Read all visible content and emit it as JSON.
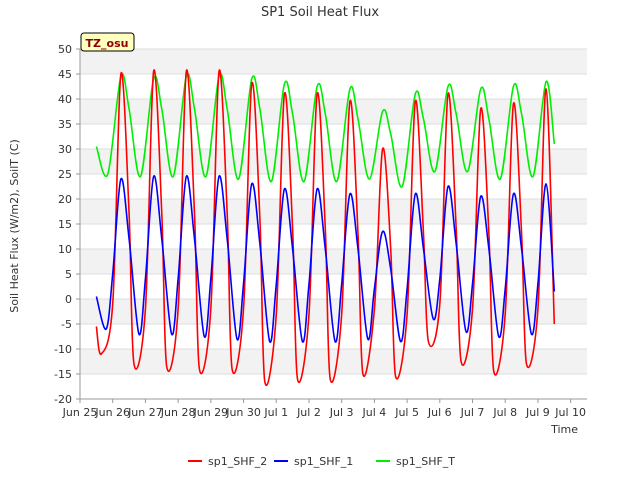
{
  "chart_data": {
    "type": "line",
    "title": "SP1 Soil Heat Flux",
    "xlabel": "Time",
    "ylabel": "Soil Heat Flux (W/m2), SoilT (C)",
    "annotation": "TZ_osu",
    "ylim": [
      -20,
      50
    ],
    "yticks": [
      -20,
      -15,
      -10,
      -5,
      0,
      5,
      10,
      15,
      20,
      25,
      30,
      35,
      40,
      45,
      50
    ],
    "xlim": [
      0,
      15.5
    ],
    "xticks": [
      {
        "x": 0,
        "label": "Jun 25"
      },
      {
        "x": 1,
        "label": "Jun 26"
      },
      {
        "x": 2,
        "label": "Jun 27"
      },
      {
        "x": 3,
        "label": "Jun 28"
      },
      {
        "x": 4,
        "label": "Jun 29"
      },
      {
        "x": 5,
        "label": "Jun 30"
      },
      {
        "x": 6,
        "label": "Jul 1"
      },
      {
        "x": 7,
        "label": "Jul 2"
      },
      {
        "x": 8,
        "label": "Jul 3"
      },
      {
        "x": 9,
        "label": "Jul 4"
      },
      {
        "x": 10,
        "label": "Jul 5"
      },
      {
        "x": 11,
        "label": "Jul 6"
      },
      {
        "x": 12,
        "label": "Jul 7"
      },
      {
        "x": 13,
        "label": "Jul 8"
      },
      {
        "x": 14,
        "label": "Jul 9"
      },
      {
        "x": 15,
        "label": "Jul 10"
      }
    ],
    "legend_position": "bottom",
    "grid": true,
    "series": [
      {
        "name": "sp1_SHF_2",
        "color": "#ff0000",
        "points": [
          [
            0.5,
            -5.5
          ],
          [
            0.65,
            -11
          ],
          [
            1.0,
            -1
          ],
          [
            1.25,
            45
          ],
          [
            1.5,
            17
          ],
          [
            1.65,
            -13
          ],
          [
            2.0,
            -2
          ],
          [
            2.25,
            45.5
          ],
          [
            2.5,
            17
          ],
          [
            2.65,
            -13.5
          ],
          [
            3.0,
            -2
          ],
          [
            3.25,
            45.5
          ],
          [
            3.5,
            17
          ],
          [
            3.65,
            -14
          ],
          [
            4.0,
            -2
          ],
          [
            4.25,
            45.5
          ],
          [
            4.5,
            17
          ],
          [
            4.65,
            -14
          ],
          [
            5.0,
            -2
          ],
          [
            5.25,
            43
          ],
          [
            5.5,
            16
          ],
          [
            5.65,
            -16.5
          ],
          [
            6.0,
            -3
          ],
          [
            6.25,
            41
          ],
          [
            6.5,
            14
          ],
          [
            6.65,
            -16
          ],
          [
            7.0,
            -3
          ],
          [
            7.25,
            41
          ],
          [
            7.5,
            14
          ],
          [
            7.65,
            -16
          ],
          [
            8.0,
            -3
          ],
          [
            8.25,
            39.5
          ],
          [
            8.5,
            13
          ],
          [
            8.65,
            -15
          ],
          [
            9.0,
            -2
          ],
          [
            9.25,
            30
          ],
          [
            9.5,
            10
          ],
          [
            9.65,
            -15.5
          ],
          [
            10.0,
            -3
          ],
          [
            10.25,
            39.5
          ],
          [
            10.5,
            13
          ],
          [
            10.65,
            -8.5
          ],
          [
            11.0,
            -1
          ],
          [
            11.25,
            41
          ],
          [
            11.5,
            14
          ],
          [
            11.65,
            -12.5
          ],
          [
            12.0,
            -2
          ],
          [
            12.25,
            38
          ],
          [
            12.5,
            13
          ],
          [
            12.65,
            -14.5
          ],
          [
            13.0,
            -3
          ],
          [
            13.25,
            39
          ],
          [
            13.5,
            13
          ],
          [
            13.65,
            -13
          ],
          [
            14.0,
            -2
          ],
          [
            14.25,
            42
          ],
          [
            14.5,
            -5
          ]
        ]
      },
      {
        "name": "sp1_SHF_1",
        "color": "#0000ff",
        "points": [
          [
            0.5,
            0.5
          ],
          [
            0.8,
            -6
          ],
          [
            1.0,
            5
          ],
          [
            1.25,
            24
          ],
          [
            1.5,
            12
          ],
          [
            1.8,
            -7
          ],
          [
            2.0,
            4
          ],
          [
            2.25,
            24.5
          ],
          [
            2.5,
            12
          ],
          [
            2.8,
            -7
          ],
          [
            3.0,
            4
          ],
          [
            3.25,
            24.5
          ],
          [
            3.5,
            12
          ],
          [
            3.8,
            -7.5
          ],
          [
            4.0,
            4
          ],
          [
            4.25,
            24.5
          ],
          [
            4.5,
            12
          ],
          [
            4.8,
            -8
          ],
          [
            5.0,
            3
          ],
          [
            5.25,
            23
          ],
          [
            5.5,
            11
          ],
          [
            5.8,
            -8.5
          ],
          [
            6.0,
            3
          ],
          [
            6.25,
            22
          ],
          [
            6.5,
            10
          ],
          [
            6.8,
            -8.5
          ],
          [
            7.0,
            3
          ],
          [
            7.25,
            22
          ],
          [
            7.5,
            10
          ],
          [
            7.8,
            -8.5
          ],
          [
            8.0,
            3
          ],
          [
            8.25,
            21
          ],
          [
            8.5,
            10
          ],
          [
            8.8,
            -8
          ],
          [
            9.0,
            2
          ],
          [
            9.25,
            13.5
          ],
          [
            9.5,
            6
          ],
          [
            9.8,
            -8.5
          ],
          [
            10.0,
            2
          ],
          [
            10.25,
            21
          ],
          [
            10.5,
            10
          ],
          [
            10.8,
            -4
          ],
          [
            11.0,
            4
          ],
          [
            11.25,
            22.5
          ],
          [
            11.5,
            11
          ],
          [
            11.8,
            -6.5
          ],
          [
            12.0,
            3
          ],
          [
            12.25,
            20.5
          ],
          [
            12.5,
            10
          ],
          [
            12.8,
            -7.5
          ],
          [
            13.0,
            2
          ],
          [
            13.25,
            21
          ],
          [
            13.5,
            10
          ],
          [
            13.8,
            -7
          ],
          [
            14.0,
            3
          ],
          [
            14.25,
            23
          ],
          [
            14.5,
            1.5
          ]
        ]
      },
      {
        "name": "sp1_SHF_T",
        "color": "#00ee00",
        "points": [
          [
            0.5,
            30.5
          ],
          [
            0.85,
            25
          ],
          [
            1.25,
            44.5
          ],
          [
            1.5,
            38
          ],
          [
            1.85,
            24.5
          ],
          [
            2.25,
            44
          ],
          [
            2.5,
            38
          ],
          [
            2.85,
            24.5
          ],
          [
            3.25,
            44.5
          ],
          [
            3.5,
            38
          ],
          [
            3.85,
            24.5
          ],
          [
            4.25,
            44.5
          ],
          [
            4.5,
            38
          ],
          [
            4.85,
            24
          ],
          [
            5.25,
            44
          ],
          [
            5.5,
            38
          ],
          [
            5.85,
            23.5
          ],
          [
            6.25,
            43
          ],
          [
            6.5,
            37
          ],
          [
            6.85,
            23.5
          ],
          [
            7.25,
            42.5
          ],
          [
            7.5,
            37
          ],
          [
            7.85,
            23.5
          ],
          [
            8.25,
            42
          ],
          [
            8.5,
            36
          ],
          [
            8.85,
            24
          ],
          [
            9.25,
            37.5
          ],
          [
            9.5,
            33
          ],
          [
            9.85,
            22.5
          ],
          [
            10.25,
            41
          ],
          [
            10.5,
            36
          ],
          [
            10.85,
            25.5
          ],
          [
            11.25,
            42.5
          ],
          [
            11.5,
            37
          ],
          [
            11.85,
            25.5
          ],
          [
            12.25,
            42
          ],
          [
            12.5,
            36
          ],
          [
            12.85,
            24
          ],
          [
            13.25,
            42.5
          ],
          [
            13.5,
            37
          ],
          [
            13.85,
            24.5
          ],
          [
            14.25,
            43.5
          ],
          [
            14.5,
            31
          ]
        ]
      }
    ]
  }
}
